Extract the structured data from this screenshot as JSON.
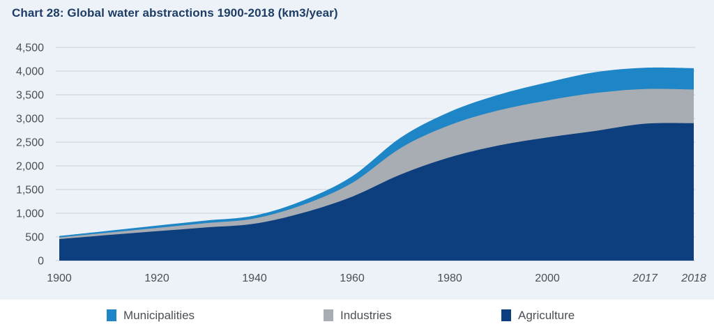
{
  "title": {
    "text": "Chart 28: Global water abstractions 1900-2018 (km3/year)"
  },
  "colors": {
    "background": "#edf2f8",
    "legend_background": "#ffffff",
    "gridline": "#c9ced3",
    "axis_text": "#4b4f54",
    "title": "#1d3c66",
    "agriculture": "#0d3e7d",
    "industries": "#a8adb3",
    "municipalities": "#1e86c6"
  },
  "chart_data": {
    "type": "area",
    "stacked": true,
    "title": "Chart 28: Global water abstractions 1900-2018 (km3/year)",
    "x": [
      1900,
      1910,
      1920,
      1930,
      1940,
      1950,
      1960,
      1970,
      1980,
      1990,
      2000,
      2010,
      2017,
      2018
    ],
    "x_axis_mode": "categorical-equal-spacing",
    "series": [
      {
        "name": "Agriculture",
        "color": "#0d3e7d",
        "values": [
          455,
          540,
          620,
          700,
          780,
          1010,
          1350,
          1820,
          2180,
          2430,
          2600,
          2740,
          2890,
          2900
        ]
      },
      {
        "name": "Industries",
        "color": "#a8adb3",
        "values": [
          35,
          50,
          70,
          90,
          110,
          170,
          290,
          560,
          680,
          740,
          780,
          800,
          730,
          710
        ]
      },
      {
        "name": "Municipalities",
        "color": "#1e86c6",
        "values": [
          30,
          40,
          50,
          55,
          60,
          90,
          140,
          220,
          280,
          330,
          380,
          440,
          450,
          450
        ]
      }
    ],
    "totals": [
      520,
      630,
      740,
      845,
      950,
      1270,
      1780,
      2600,
      3140,
      3500,
      3760,
      3980,
      4070,
      4060
    ],
    "ylim": [
      0,
      4500
    ],
    "y_tick_step": 500,
    "y_tick_labels": [
      "0",
      "500",
      "1,000",
      "1,500",
      "2,000",
      "2,500",
      "3,000",
      "3,500",
      "4,000",
      "4,500"
    ],
    "x_ticks": [
      {
        "year": 1900,
        "label": "1900",
        "italic": false
      },
      {
        "year": 1920,
        "label": "1920",
        "italic": false
      },
      {
        "year": 1940,
        "label": "1940",
        "italic": false
      },
      {
        "year": 1960,
        "label": "1960",
        "italic": false
      },
      {
        "year": 1980,
        "label": "1980",
        "italic": false
      },
      {
        "year": 2000,
        "label": "2000",
        "italic": false
      },
      {
        "year": 2017,
        "label": "2017",
        "italic": true
      },
      {
        "year": 2018,
        "label": "2018",
        "italic": true
      }
    ],
    "grid": true,
    "legend": {
      "position": "bottom",
      "items": [
        "Municipalities",
        "Industries",
        "Agriculture"
      ]
    }
  }
}
